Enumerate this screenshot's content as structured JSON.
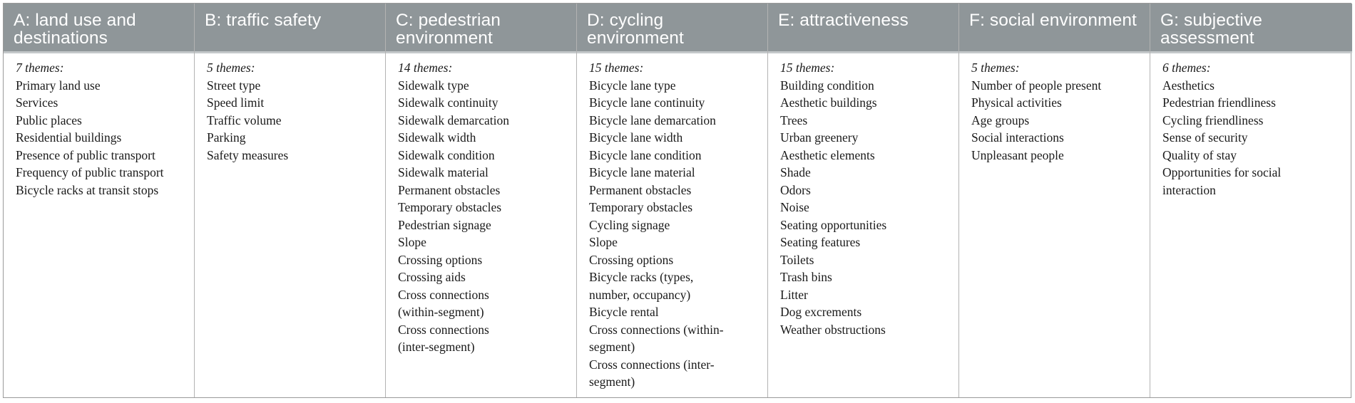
{
  "columns": [
    {
      "header": "A: land use and destinations",
      "count": "7 themes:",
      "items": [
        "Primary land use",
        "Services",
        "Public places",
        "Residential buildings",
        "Presence of public transport",
        "Frequency of public transport",
        "Bicycle racks at transit stops"
      ]
    },
    {
      "header": "B: traffic safety",
      "count": "5 themes:",
      "items": [
        "Street type",
        "Speed limit",
        "Traffic volume",
        "Parking",
        "Safety measures"
      ]
    },
    {
      "header": "C: pedestrian environment",
      "count": "14 themes:",
      "items": [
        "Sidewalk type",
        "Sidewalk continuity",
        "Sidewalk demarcation",
        "Sidewalk width",
        "Sidewalk condition",
        "Sidewalk material",
        "Permanent obstacles",
        "Temporary obstacles",
        "Pedestrian signage",
        "Slope",
        "Crossing options",
        "Crossing aids",
        "Cross connections (within-segment)",
        "Cross connections (inter-segment)"
      ]
    },
    {
      "header": "D: cycling environment",
      "count": "15 themes:",
      "items": [
        "Bicycle lane type",
        "Bicycle lane continuity",
        "Bicycle lane demarcation",
        "Bicycle lane width",
        "Bicycle lane condition",
        "Bicycle lane material",
        "Permanent obstacles",
        "Temporary obstacles",
        "Cycling signage",
        "Slope",
        "Crossing options",
        "Bicycle racks (types, number, occupancy)",
        "Bicycle rental",
        "Cross connections (within-segment)",
        "Cross connections (inter-segment)"
      ]
    },
    {
      "header": "E: attractiveness",
      "count": "15 themes:",
      "items": [
        "Building condition",
        "Aesthetic buildings",
        "Trees",
        "Urban greenery",
        "Aesthetic elements",
        "Shade",
        "Odors",
        "Noise",
        "Seating opportunities",
        "Seating features",
        "Toilets",
        "Trash bins",
        "Litter",
        "Dog excrements",
        "Weather obstructions"
      ]
    },
    {
      "header": "F: social environment",
      "count": "5 themes:",
      "items": [
        "Number of people present",
        "Physical activities",
        "Age groups",
        "Social interactions",
        "Unpleasant people"
      ]
    },
    {
      "header": "G: subjective assessment",
      "count": "6 themes:",
      "items": [
        "Aesthetics",
        "Pedestrian friendliness",
        "Cycling friendliness",
        "Sense of security",
        "Quality of stay",
        "Opportunities for social interaction"
      ]
    }
  ]
}
